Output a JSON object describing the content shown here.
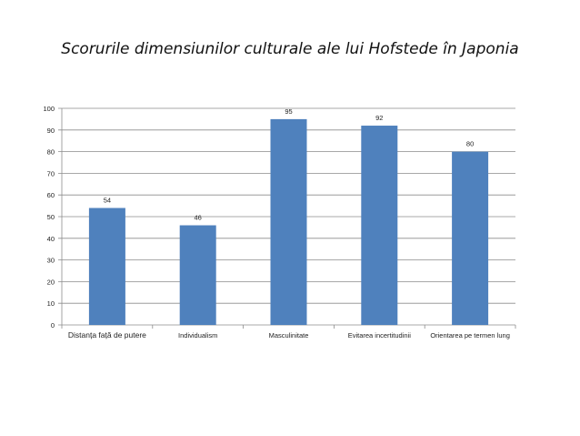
{
  "chart_data": {
    "type": "bar",
    "title": "Scorurile dimensiunilor culturale ale lui Hofstede în Japonia",
    "categories": [
      "Distanța față de putere",
      "Individualism",
      "Masculinitate",
      "Evitarea incertitudinii",
      "Orientarea pe termen lung"
    ],
    "series": [
      {
        "values": [
          54,
          46,
          95,
          92,
          80
        ]
      }
    ],
    "xlabel": "",
    "ylabel": "",
    "ylim": [
      0,
      100
    ],
    "yticks": [
      0,
      10,
      20,
      30,
      40,
      50,
      60,
      70,
      80,
      90,
      100
    ],
    "grid": true,
    "data_labels": true,
    "legend": "none",
    "bar_color": "#4f81bd"
  }
}
